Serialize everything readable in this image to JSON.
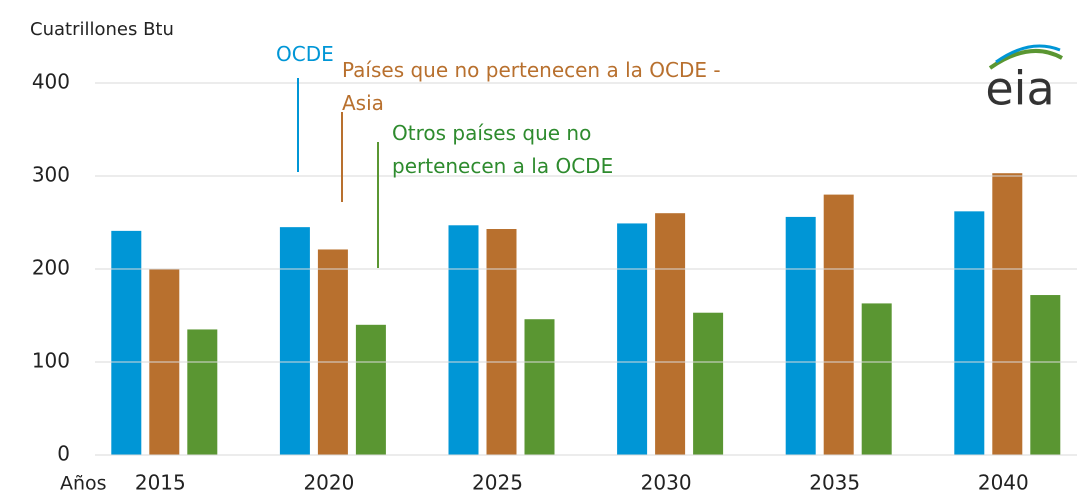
{
  "chart_data": {
    "type": "bar",
    "y_label": "Cuatrillones Btu",
    "x_label": "Años",
    "logo": "eia",
    "categories": [
      "2015",
      "2020",
      "2025",
      "2030",
      "2035",
      "2040"
    ],
    "series": [
      {
        "name": "OCDE",
        "color": "#0096d6",
        "values": [
          241,
          245,
          247,
          249,
          256,
          262
        ]
      },
      {
        "name": "Países que no pertenecen a la OCDE - Asia",
        "color": "#b8702e",
        "values": [
          200,
          221,
          243,
          260,
          280,
          303
        ]
      },
      {
        "name": "Otros países que no pertenecen a la OCDE",
        "color": "#5a9632",
        "values": [
          135,
          140,
          146,
          153,
          163,
          172
        ]
      }
    ],
    "ylim": [
      0,
      400
    ],
    "yticks": [
      0,
      100,
      200,
      300,
      400
    ],
    "grid": true
  }
}
